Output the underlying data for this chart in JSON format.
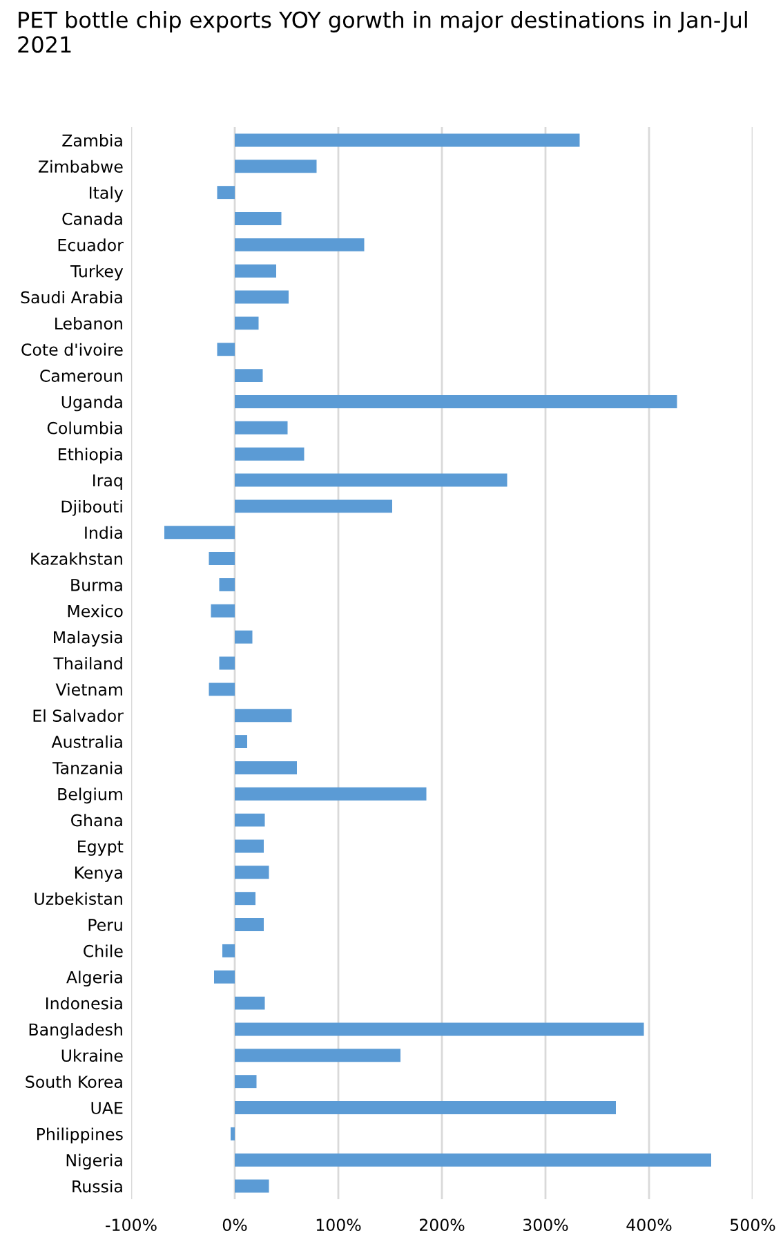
{
  "chart_data": {
    "type": "bar",
    "orientation": "horizontal",
    "title": "PET bottle chip exports YOY gorwth in major destinations in Jan-Jul 2021",
    "categories": [
      "Zambia",
      "Zimbabwe",
      "Italy",
      "Canada",
      "Ecuador",
      "Turkey",
      "Saudi Arabia",
      "Lebanon",
      "Cote d'ivoire",
      "Cameroun",
      "Uganda",
      "Columbia",
      "Ethiopia",
      "Iraq",
      "Djibouti",
      "India",
      "Kazakhstan",
      "Burma",
      "Mexico",
      "Malaysia",
      "Thailand",
      "Vietnam",
      "El Salvador",
      "Australia",
      "Tanzania",
      "Belgium",
      "Ghana",
      "Egypt",
      "Kenya",
      "Uzbekistan",
      "Peru",
      "Chile",
      "Algeria",
      "Indonesia",
      "Bangladesh",
      "Ukraine",
      "South Korea",
      "UAE",
      "Philippines",
      "Nigeria",
      "Russia"
    ],
    "values": [
      333,
      79,
      -17,
      45,
      125,
      40,
      52,
      23,
      -17,
      27,
      427,
      51,
      67,
      263,
      152,
      -68,
      -25,
      -15,
      -23,
      17,
      -15,
      -25,
      55,
      12,
      60,
      185,
      29,
      28,
      33,
      20,
      28,
      -12,
      -20,
      29,
      395,
      160,
      21,
      368,
      -4,
      460,
      33
    ],
    "color": "#5b9bd5",
    "xlim": [
      -100,
      500
    ],
    "xticks": [
      {
        "value": -100,
        "label": "-100%"
      },
      {
        "value": 0,
        "label": "0%"
      },
      {
        "value": 100,
        "label": "100%"
      },
      {
        "value": 200,
        "label": "200%"
      },
      {
        "value": 300,
        "label": "300%"
      },
      {
        "value": 400,
        "label": "400%"
      },
      {
        "value": 500,
        "label": "500%"
      }
    ],
    "grid": "x",
    "legend": false
  }
}
